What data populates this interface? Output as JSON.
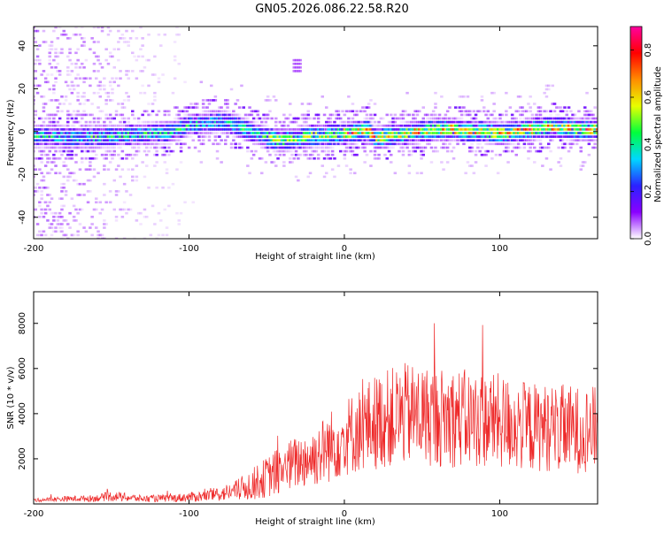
{
  "title": "GN05.2026.086.22.58.R20",
  "chart_data": [
    {
      "type": "heatmap",
      "title": "GN05.2026.086.22.58.R20",
      "xlabel": "Height of straight line (km)",
      "ylabel": "Frequency (Hz)",
      "xlim": [
        -200,
        163
      ],
      "ylim": [
        -50,
        49
      ],
      "x_ticks": [
        -200,
        -100,
        0,
        100
      ],
      "y_ticks": [
        -40,
        -20,
        0,
        20,
        40
      ],
      "x_tick_labels": [
        "-200",
        "-100",
        "0",
        "100"
      ],
      "y_tick_labels": [
        "-40",
        "-20",
        "0",
        "20",
        "40"
      ],
      "colorbar": {
        "label": "Normalized spectral amplitude",
        "range": [
          0,
          0.9
        ],
        "ticks": [
          0,
          0.2,
          0.4,
          0.6,
          0.8
        ],
        "tick_labels": [
          "0.0",
          "0.2",
          "0.4",
          "0.6",
          "0.8"
        ],
        "colors": [
          "#ffffff",
          "#8a00ff",
          "#2a22ff",
          "#00d8ff",
          "#00ff3c",
          "#e8ff00",
          "#ff8c00",
          "#ff0000",
          "#ff00a0"
        ]
      },
      "ridge": {
        "x": [
          -195,
          -175,
          -150,
          -125,
          -110,
          -100,
          -90,
          -80,
          -70,
          -60,
          -50,
          -40,
          -30,
          -20,
          -10,
          0,
          10,
          15,
          20,
          30,
          40,
          50,
          60,
          70,
          80,
          90,
          100,
          110,
          120,
          130,
          140,
          150,
          163
        ],
        "y": [
          -2,
          -3,
          -2,
          -1,
          0,
          3,
          4,
          5,
          3,
          0,
          -3,
          -4,
          -3,
          -2,
          -2,
          -1,
          0,
          1,
          -3,
          -2,
          -1,
          0,
          1,
          1,
          0,
          0,
          -1,
          0,
          1,
          2,
          2,
          1,
          1
        ]
      },
      "marker": {
        "x": -30,
        "y": 31
      }
    },
    {
      "type": "line",
      "xlabel": "Height of straight line (km)",
      "ylabel": "SNR (10 * v/v)",
      "xlim": [
        -200,
        163
      ],
      "ylim": [
        0,
        9400
      ],
      "x_ticks": [
        -200,
        -100,
        0,
        100
      ],
      "y_ticks": [
        2000,
        4000,
        6000,
        8000
      ],
      "x_tick_labels": [
        "-200",
        "-100",
        "0",
        "100"
      ],
      "y_tick_labels": [
        "2000",
        "4000",
        "6000",
        "8000"
      ],
      "color": "#ee2a2a",
      "envelope": {
        "x": [
          -200,
          -180,
          -160,
          -150,
          -130,
          -110,
          -90,
          -80,
          -70,
          -60,
          -50,
          -40,
          -30,
          -20,
          -10,
          0,
          10,
          20,
          30,
          40,
          50,
          60,
          70,
          80,
          90,
          100,
          110,
          120,
          130,
          140,
          150,
          163
        ],
        "base": [
          150,
          200,
          220,
          300,
          200,
          220,
          300,
          380,
          500,
          700,
          1000,
          1300,
          1600,
          1800,
          2200,
          2600,
          2900,
          3200,
          3400,
          3500,
          3500,
          3400,
          3400,
          3300,
          3300,
          3200,
          3100,
          3000,
          3000,
          2900,
          2900,
          3000
        ],
        "amp": [
          150,
          250,
          300,
          450,
          300,
          350,
          500,
          650,
          900,
          1400,
          1800,
          2300,
          2400,
          2700,
          3200,
          3500,
          3800,
          4300,
          4400,
          4600,
          4500,
          4400,
          4500,
          4400,
          4300,
          4300,
          4100,
          4000,
          3900,
          4000,
          3900,
          3700
        ]
      }
    }
  ]
}
